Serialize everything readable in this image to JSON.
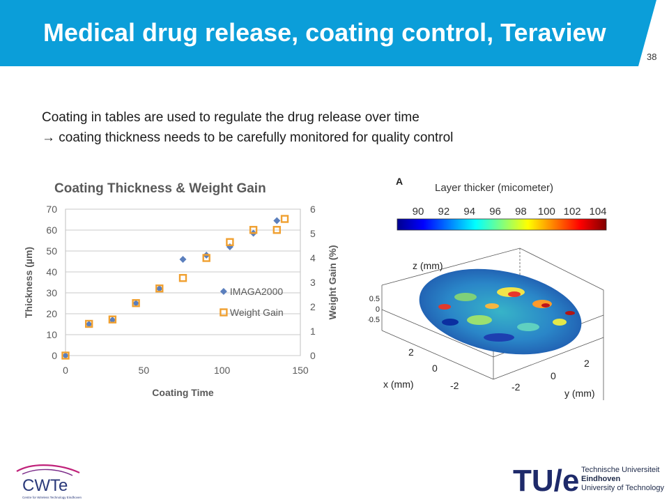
{
  "slide": {
    "title": "Medical drug release, coating control, Teraview",
    "page_number": "38",
    "lines": [
      "Coating in tables are used to regulate the drug release over time",
      "→ coating thickness needs to be carefully monitored for quality control"
    ]
  },
  "colors": {
    "banner": "#0b9ed9",
    "series_imaga": "#5b7fbd",
    "series_weight": "#f0a030"
  },
  "chart_data": {
    "type": "scatter",
    "title": "Coating Thickness & Weight Gain",
    "xlabel": "Coating Time",
    "ylabel": "Thickness (µm)",
    "y2label": "Weight Gain (%)",
    "xlim": [
      0,
      150
    ],
    "ylim": [
      0,
      70
    ],
    "y2lim": [
      0,
      6
    ],
    "x_ticks": [
      "0",
      "50",
      "100",
      "150"
    ],
    "y_ticks": [
      "0",
      "10",
      "20",
      "30",
      "40",
      "50",
      "60",
      "70"
    ],
    "y2_ticks": [
      "0",
      "1",
      "2",
      "3",
      "4",
      "5",
      "6"
    ],
    "grid": true,
    "legend_position": "lower-right",
    "series": [
      {
        "name": "IMAGA2000",
        "marker": "diamond",
        "axis": "left",
        "x": [
          0,
          15,
          30,
          45,
          60,
          75,
          90,
          105,
          120,
          135
        ],
        "y": [
          0,
          15,
          17,
          25,
          32,
          46,
          48,
          52,
          58.5,
          64.5
        ]
      },
      {
        "name": "Weight Gain",
        "marker": "square",
        "axis": "right",
        "x": [
          0,
          15,
          30,
          45,
          60,
          75,
          90,
          105,
          120,
          135,
          140
        ],
        "y": [
          0,
          1.3,
          1.48,
          2.15,
          2.75,
          3.18,
          4.0,
          4.65,
          5.15,
          5.15,
          5.6
        ]
      }
    ]
  },
  "thickness_map": {
    "panel_letter": "A",
    "colorbar_title": "Layer thicker (micometer)",
    "colorbar_ticks": [
      "90",
      "92",
      "94",
      "96",
      "98",
      "100",
      "102",
      "104"
    ],
    "z_label": "z (mm)",
    "x_label": "x (mm)",
    "y_label": "y (mm)",
    "z_ticks": [
      "0.5",
      "0",
      "-0.5"
    ],
    "x_ticks": [
      "2",
      "0",
      "-2"
    ],
    "y_ticks": [
      "2",
      "0",
      "-2"
    ]
  },
  "logos": {
    "cwte_name": "CWTe",
    "cwte_tagline": "Centre for Wireless Technology Eindhoven",
    "tue_mark": "TU/e",
    "tue_lines": [
      "Technische Universiteit",
      "Eindhoven",
      "University of Technology"
    ]
  }
}
